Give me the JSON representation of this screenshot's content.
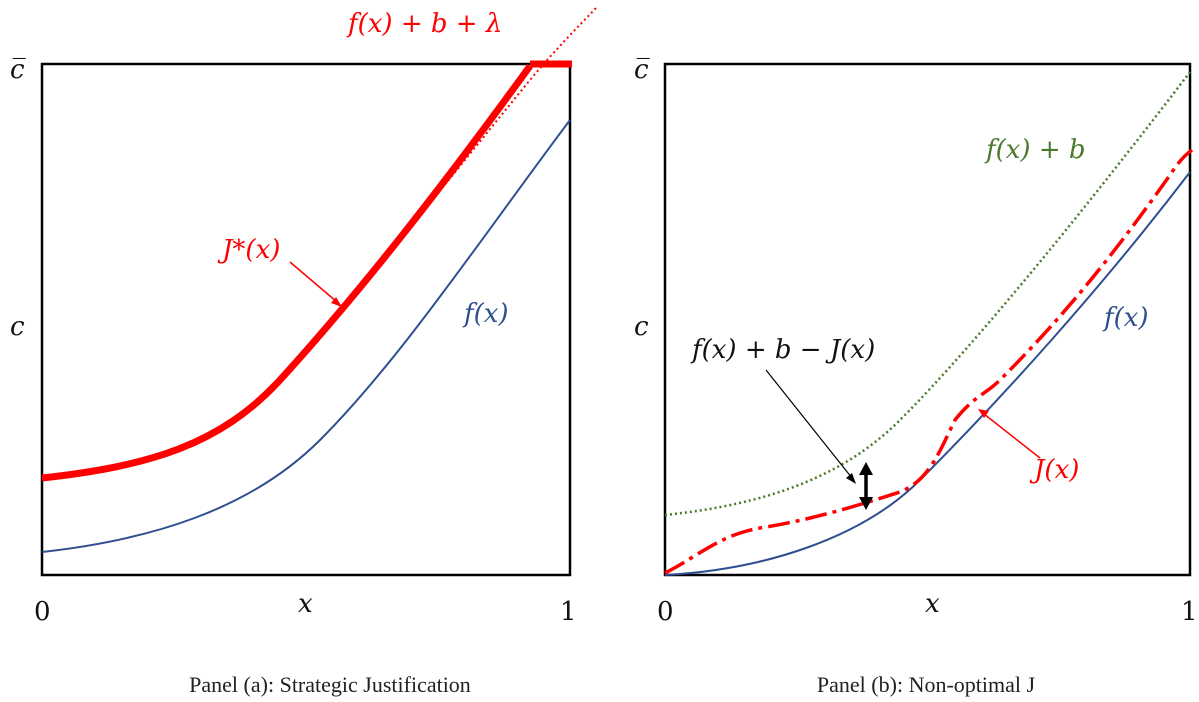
{
  "panel_a": {
    "caption": "Panel (a): Strategic Justification",
    "y_top_label": "c̅",
    "y_mid_label": "c",
    "x_label": "x",
    "x_min_label": "0",
    "x_max_label": "1",
    "label_fb_lambda": "f(x) + b + λ",
    "label_jstar": "J*(x)",
    "label_f": "f(x)"
  },
  "panel_b": {
    "caption": "Panel (b): Non-optimal J",
    "y_top_label": "c̅",
    "y_mid_label": "c",
    "x_label": "x",
    "x_min_label": "0",
    "x_max_label": "1",
    "label_fb": "f(x) + b",
    "label_gap": "f(x) + b − J(x)",
    "label_j": "J(x)",
    "label_f": "f(x)"
  },
  "colors": {
    "f_curve": "#2f4f8f",
    "j_curve": "#ff0000",
    "fb_curve": "#4a7a2a",
    "axis": "#000000"
  }
}
